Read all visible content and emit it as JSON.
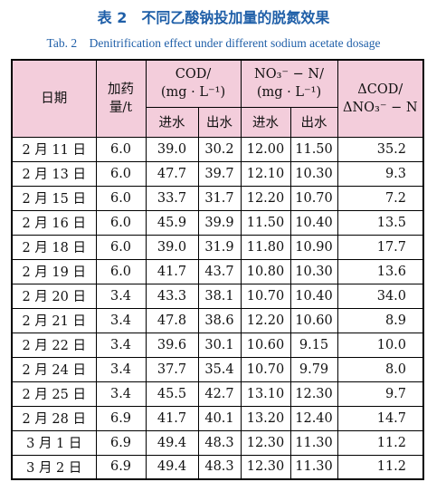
{
  "title": "表 2　不同乙酸钠投加量的脱氮效果",
  "subtitle": "Tab. 2　Denitrification effect under different sodium acetate dosage",
  "table": {
    "header": {
      "date": "日期",
      "dosage": [
        "加药",
        "量/t"
      ],
      "cod": [
        "COD/",
        "(mg · L⁻¹)"
      ],
      "no3": [
        "NO₃⁻ − N/",
        "(mg · L⁻¹)"
      ],
      "ratio": [
        "ΔCOD/",
        "ΔNO₃⁻ − N"
      ],
      "sub": [
        "进水",
        "出水",
        "进水",
        "出水"
      ]
    },
    "rows": [
      [
        "2 月 11 日",
        "6.0",
        "39.0",
        "30.2",
        "12.00",
        "11.50",
        "35.2"
      ],
      [
        "2 月 13 日",
        "6.0",
        "47.7",
        "39.7",
        "12.10",
        "10.30",
        "9.3"
      ],
      [
        "2 月 15 日",
        "6.0",
        "33.7",
        "31.7",
        "12.20",
        "10.70",
        "7.2"
      ],
      [
        "2 月 16 日",
        "6.0",
        "45.9",
        "39.9",
        "11.50",
        "10.40",
        "13.5"
      ],
      [
        "2 月 18 日",
        "6.0",
        "39.0",
        "31.9",
        "11.80",
        "10.90",
        "17.7"
      ],
      [
        "2 月 19 日",
        "6.0",
        "41.7",
        "43.7",
        "10.80",
        "10.30",
        "13.6"
      ],
      [
        "2 月 20 日",
        "3.4",
        "43.3",
        "38.1",
        "10.70",
        "10.40",
        "34.0"
      ],
      [
        "2 月 21 日",
        "3.4",
        "47.8",
        "38.6",
        "12.20",
        "10.60",
        "8.9"
      ],
      [
        "2 月 22 日",
        "3.4",
        "39.6",
        "30.1",
        "10.60",
        "9.15",
        "10.0"
      ],
      [
        "2 月 24 日",
        "3.4",
        "37.7",
        "35.4",
        "10.70",
        "9.79",
        "8.0"
      ],
      [
        "2 月 25 日",
        "3.4",
        "45.5",
        "42.7",
        "13.10",
        "12.30",
        "9.7"
      ],
      [
        "2 月 28 日",
        "6.9",
        "41.7",
        "40.1",
        "13.20",
        "12.40",
        "14.7"
      ],
      [
        "3 月 1 日",
        "6.9",
        "49.4",
        "48.3",
        "12.30",
        "11.30",
        "11.2"
      ],
      [
        "3 月 2 日",
        "6.9",
        "49.4",
        "48.3",
        "12.30",
        "11.30",
        "11.2"
      ]
    ]
  }
}
